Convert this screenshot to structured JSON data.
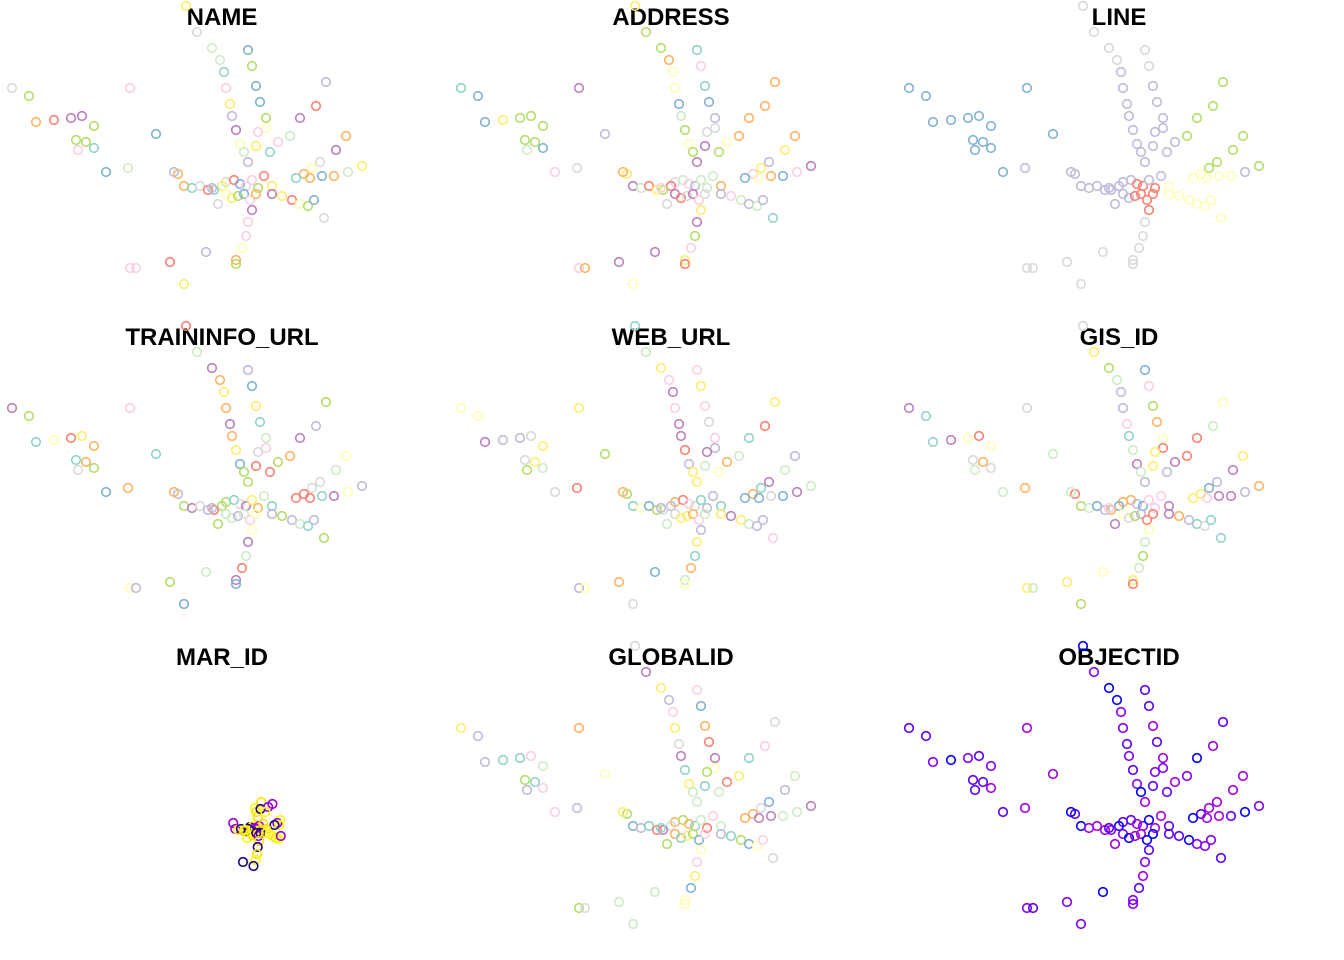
{
  "chart_data": [
    {
      "type": "scatter",
      "title": "NAME",
      "palette": "Set3-mixed",
      "points": []
    },
    {
      "type": "scatter",
      "title": "ADDRESS",
      "palette": "Set3-mixed",
      "points": []
    },
    {
      "type": "scatter",
      "title": "LINE",
      "palette": "Set3-lines",
      "points": []
    },
    {
      "type": "scatter",
      "title": "TRAININFO_URL",
      "palette": "Set3-mixed",
      "points": []
    },
    {
      "type": "scatter",
      "title": "WEB_URL",
      "palette": "Set3-mixed",
      "points": []
    },
    {
      "type": "scatter",
      "title": "GIS_ID",
      "palette": "Set3-mixed",
      "points": []
    },
    {
      "type": "scatter",
      "title": "MAR_ID",
      "palette": "gnuplot-partial",
      "points": []
    },
    {
      "type": "scatter",
      "title": "GLOBALID",
      "palette": "Set3-mixed",
      "points": []
    },
    {
      "type": "scatter",
      "title": "OBJECTID",
      "palette": "blue-purple",
      "points": []
    }
  ],
  "colors": {
    "set3": [
      "#8DD3C7",
      "#FFFFB3",
      "#BEBADA",
      "#FB8072",
      "#80B1D3",
      "#FDB462",
      "#B3DE69",
      "#FCCDE5",
      "#D9D9D9",
      "#BC80BD",
      "#CCEBC5",
      "#FFED6F"
    ],
    "line_colors": {
      "blue": "#80B1D3",
      "green": "#B3DE69",
      "orange": "#FDB462",
      "red": "#FB8072",
      "silver": "#D9D9D9",
      "yellow": "#FFFFB3",
      "mixed": "#BEBADA"
    },
    "objectid": [
      "#0000FF",
      "#5A00FF",
      "#8000FF",
      "#A000E0"
    ],
    "mar_id": [
      "#FFFF00",
      "#FFE000",
      "#9A00D0",
      "#200080"
    ]
  }
}
